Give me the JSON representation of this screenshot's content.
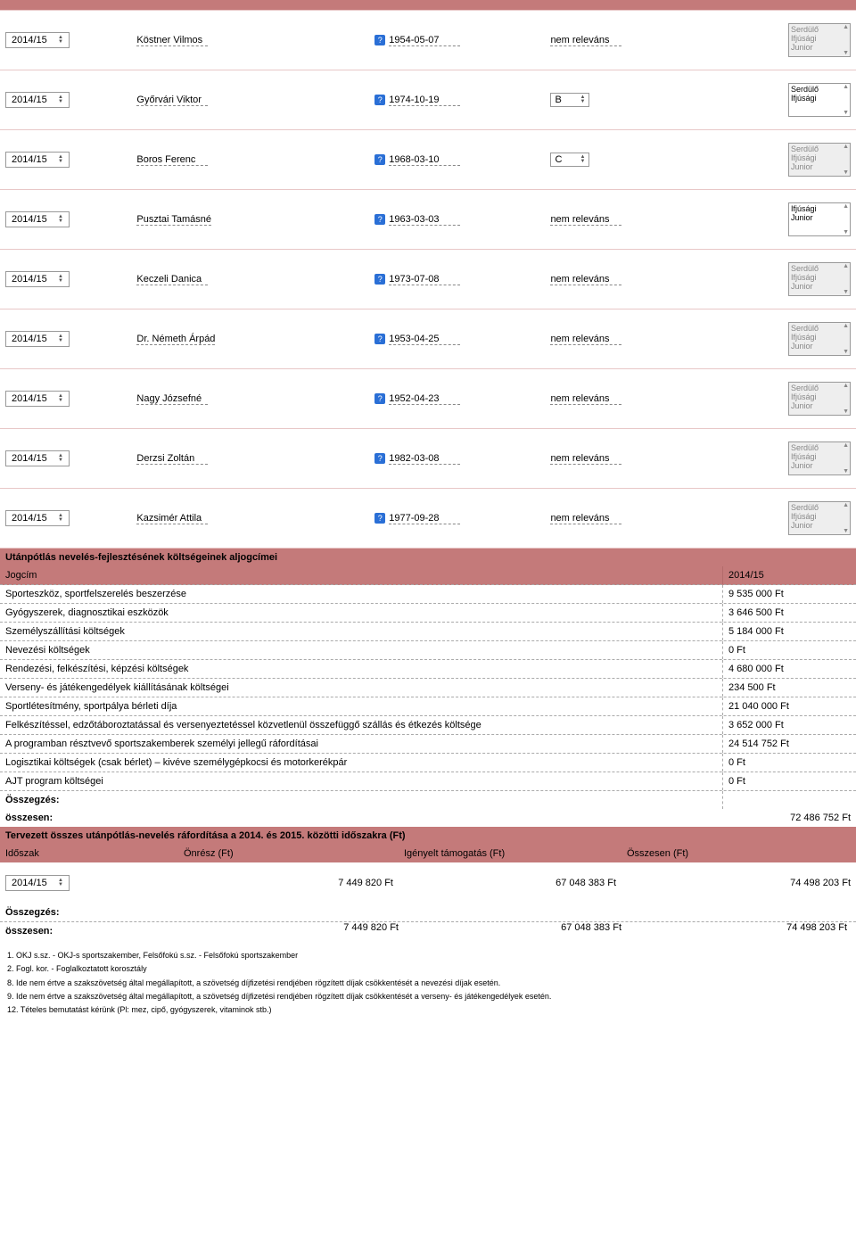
{
  "year_value": "2014/15",
  "persons": [
    {
      "name": "Köstner Vilmos",
      "date": "1954-05-07",
      "rel": "nem releváns",
      "rel_sel": "",
      "age": [
        "Serdülő",
        "Ifjúsági",
        "Junior"
      ],
      "age_active": false
    },
    {
      "name": "Győrvári Viktor",
      "date": "1974-10-19",
      "rel": "",
      "rel_sel": "B",
      "age": [
        "Serdülő",
        "Ifjúsági"
      ],
      "age_active": true
    },
    {
      "name": "Boros Ferenc",
      "date": "1968-03-10",
      "rel": "",
      "rel_sel": "C",
      "age": [
        "Serdülő",
        "Ifjúsági",
        "Junior"
      ],
      "age_active": false
    },
    {
      "name": "Pusztai Tamásné",
      "date": "1963-03-03",
      "rel": "nem releváns",
      "rel_sel": "",
      "age": [
        "Ifjúsági",
        "Junior"
      ],
      "age_active": true
    },
    {
      "name": "Keczeli Danica",
      "date": "1973-07-08",
      "rel": "nem releváns",
      "rel_sel": "",
      "age": [
        "Serdülő",
        "Ifjúsági",
        "Junior"
      ],
      "age_active": false
    },
    {
      "name": "Dr. Németh Árpád",
      "date": "1953-04-25",
      "rel": "nem releváns",
      "rel_sel": "",
      "age": [
        "Serdülő",
        "Ifjúsági",
        "Junior"
      ],
      "age_active": false
    },
    {
      "name": "Nagy Józsefné",
      "date": "1952-04-23",
      "rel": "nem releváns",
      "rel_sel": "",
      "age": [
        "Serdülő",
        "Ifjúsági",
        "Junior"
      ],
      "age_active": false
    },
    {
      "name": "Derzsi Zoltán",
      "date": "1982-03-08",
      "rel": "nem releváns",
      "rel_sel": "",
      "age": [
        "Serdülő",
        "Ifjúsági",
        "Junior"
      ],
      "age_active": false
    },
    {
      "name": "Kazsimér Attila",
      "date": "1977-09-28",
      "rel": "nem releváns",
      "rel_sel": "",
      "age": [
        "Serdülő",
        "Ifjúsági",
        "Junior"
      ],
      "age_active": false
    }
  ],
  "cost_section_title": "Utánpótlás nevelés-fejlesztésének költségeinek aljogcímei",
  "cost_header_left": "Jogcím",
  "cost_header_right": "2014/15",
  "costs": [
    {
      "label": "Sporteszköz, sportfelszerelés beszerzése",
      "value": "9 535 000  Ft"
    },
    {
      "label": "Gyógyszerek, diagnosztikai eszközök",
      "value": "3 646 500  Ft"
    },
    {
      "label": "Személyszállítási költségek",
      "value": "5 184 000 Ft"
    },
    {
      "label": "Nevezési költségek",
      "value": "0 Ft"
    },
    {
      "label": "Rendezési, felkészítési, képzési költségek",
      "value": "4 680 000 Ft"
    },
    {
      "label": "Verseny- és játékengedélyek kiállításának költségei",
      "value": "234 500 Ft"
    },
    {
      "label": "Sportlétesítmény, sportpálya bérleti díja",
      "value": "21 040 000  Ft"
    },
    {
      "label": "Felkészítéssel, edzőtáboroztatással és versenyeztetéssel közvetlenül összefüggő szállás és étkezés költsége",
      "value": "3 652 000 Ft"
    },
    {
      "label": "A programban résztvevő sportszakemberek személyi jellegű ráfordításai",
      "value": "24 514 752  Ft"
    },
    {
      "label": "Logisztikai költségek (csak bérlet) – kivéve személygépkocsi és motorkerékpár",
      "value": "0 Ft"
    },
    {
      "label": "AJT program költségei",
      "value": "0 Ft"
    }
  ],
  "osszegzes_label": "Összegzés:",
  "osszesen_label": "összesen:",
  "cost_total": "72 486 752 Ft",
  "planned_title": "Tervezett összes utánpótlás-nevelés ráfordítása a 2014. és 2015. közötti időszakra (Ft)",
  "planned_headers": {
    "period": "Időszak",
    "onresz": "Önrész (Ft)",
    "tamog": "Igényelt támogatás (Ft)",
    "ossz": "Összesen (Ft)"
  },
  "planned_row": {
    "period": "2014/15",
    "onresz": "7 449 820 Ft",
    "tamog": "67 048 383 Ft",
    "ossz": "74 498 203 Ft"
  },
  "planned_sum": {
    "onresz": "7 449 820 Ft",
    "tamog": "67 048 383 Ft",
    "ossz": "74 498 203 Ft"
  },
  "footnotes": [
    "1. OKJ s.sz. - OKJ-s sportszakember, Felsőfokú s.sz. - Felsőfokú sportszakember",
    "2. Fogl. kor. - Foglalkoztatott korosztály",
    "8. Ide nem értve a szakszövetség által megállapított, a szövetség díjfizetési rendjében rögzített díjak csökkentését a nevezési díjak esetén.",
    "9. Ide nem értve a szakszövetség által megállapított, a szövetség díjfizetési rendjében rögzített díjak csökkentését a verseny- és játékengedélyek esetén.",
    "12. Tételes bemutatást kérünk (Pl: mez, cipő, gyógyszerek, vitaminok stb.)"
  ]
}
